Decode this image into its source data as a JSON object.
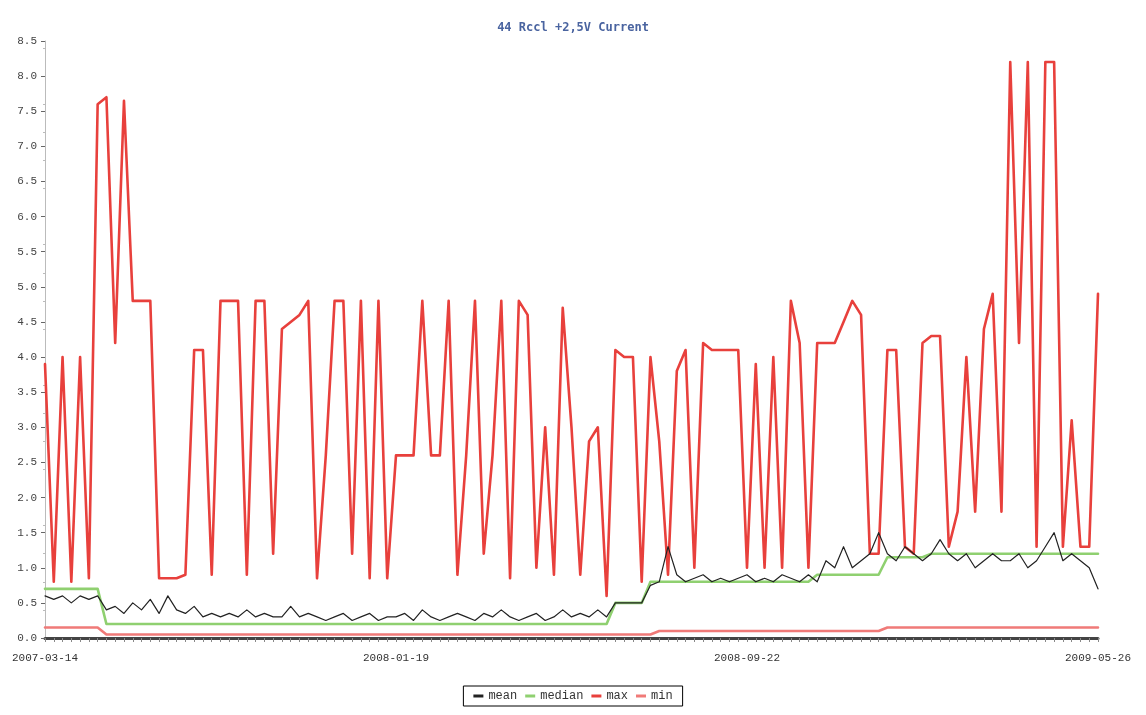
{
  "chart_data": {
    "type": "line",
    "title": "44 Rccl +2,5V Current",
    "categories": [
      "2007-03-14",
      null,
      null,
      null,
      null,
      null,
      null,
      null,
      null,
      null,
      null,
      null,
      null,
      null,
      null,
      null,
      null,
      null,
      null,
      null,
      null,
      null,
      null,
      null,
      null,
      null,
      null,
      null,
      null,
      null,
      null,
      null,
      null,
      null,
      null,
      null,
      null,
      null,
      null,
      null,
      "2008-01-19",
      null,
      null,
      null,
      null,
      null,
      null,
      null,
      null,
      null,
      null,
      null,
      null,
      null,
      null,
      null,
      null,
      null,
      null,
      null,
      null,
      null,
      null,
      null,
      null,
      null,
      null,
      null,
      null,
      null,
      null,
      null,
      null,
      null,
      null,
      null,
      null,
      null,
      null,
      null,
      "2008-09-22",
      null,
      null,
      null,
      null,
      null,
      null,
      null,
      null,
      null,
      null,
      null,
      null,
      null,
      null,
      null,
      null,
      null,
      null,
      null,
      null,
      null,
      null,
      null,
      null,
      null,
      null,
      null,
      null,
      null,
      null,
      null,
      null,
      null,
      null,
      null,
      null,
      null,
      null,
      null,
      "2009-05-26"
    ],
    "series": [
      {
        "name": "mean",
        "color": "#222222",
        "values": [
          0.6,
          0.55,
          0.6,
          0.5,
          0.6,
          0.55,
          0.6,
          0.4,
          0.45,
          0.35,
          0.5,
          0.4,
          0.55,
          0.35,
          0.6,
          0.4,
          0.35,
          0.45,
          0.3,
          0.35,
          0.3,
          0.35,
          0.3,
          0.4,
          0.3,
          0.35,
          0.3,
          0.3,
          0.45,
          0.3,
          0.35,
          0.3,
          0.25,
          0.3,
          0.35,
          0.25,
          0.3,
          0.35,
          0.25,
          0.3,
          0.3,
          0.35,
          0.25,
          0.4,
          0.3,
          0.25,
          0.3,
          0.35,
          0.3,
          0.25,
          0.35,
          0.3,
          0.4,
          0.3,
          0.25,
          0.3,
          0.35,
          0.25,
          0.3,
          0.4,
          0.3,
          0.35,
          0.3,
          0.4,
          0.3,
          0.5,
          0.5,
          0.5,
          0.5,
          0.75,
          0.8,
          1.3,
          0.9,
          0.8,
          0.85,
          0.9,
          0.8,
          0.85,
          0.8,
          0.85,
          0.9,
          0.8,
          0.85,
          0.8,
          0.9,
          0.85,
          0.8,
          0.9,
          0.8,
          1.1,
          1.0,
          1.3,
          1.0,
          1.1,
          1.2,
          1.5,
          1.2,
          1.1,
          1.3,
          1.2,
          1.1,
          1.2,
          1.4,
          1.2,
          1.1,
          1.2,
          1.0,
          1.1,
          1.2,
          1.1,
          1.1,
          1.2,
          1.0,
          1.1,
          1.3,
          1.5,
          1.1,
          1.2,
          1.1,
          1.0,
          0.7
        ]
      },
      {
        "name": "median",
        "color": "#8fd070",
        "values": [
          0.7,
          0.7,
          0.7,
          0.7,
          0.7,
          0.7,
          0.7,
          0.2,
          0.2,
          0.2,
          0.2,
          0.2,
          0.2,
          0.2,
          0.2,
          0.2,
          0.2,
          0.2,
          0.2,
          0.2,
          0.2,
          0.2,
          0.2,
          0.2,
          0.2,
          0.2,
          0.2,
          0.2,
          0.2,
          0.2,
          0.2,
          0.2,
          0.2,
          0.2,
          0.2,
          0.2,
          0.2,
          0.2,
          0.2,
          0.2,
          0.2,
          0.2,
          0.2,
          0.2,
          0.2,
          0.2,
          0.2,
          0.2,
          0.2,
          0.2,
          0.2,
          0.2,
          0.2,
          0.2,
          0.2,
          0.2,
          0.2,
          0.2,
          0.2,
          0.2,
          0.2,
          0.2,
          0.2,
          0.2,
          0.2,
          0.5,
          0.5,
          0.5,
          0.5,
          0.8,
          0.8,
          0.8,
          0.8,
          0.8,
          0.8,
          0.8,
          0.8,
          0.8,
          0.8,
          0.8,
          0.8,
          0.8,
          0.8,
          0.8,
          0.8,
          0.8,
          0.8,
          0.8,
          0.9,
          0.9,
          0.9,
          0.9,
          0.9,
          0.9,
          0.9,
          0.9,
          1.15,
          1.15,
          1.15,
          1.15,
          1.15,
          1.2,
          1.2,
          1.2,
          1.2,
          1.2,
          1.2,
          1.2,
          1.2,
          1.2,
          1.2,
          1.2,
          1.2,
          1.2,
          1.2,
          1.2,
          1.2,
          1.2,
          1.2,
          1.2,
          1.2
        ]
      },
      {
        "name": "max",
        "color": "#e8403c",
        "values": [
          3.9,
          0.8,
          4.0,
          0.8,
          4.0,
          0.85,
          7.6,
          7.7,
          4.2,
          7.65,
          4.8,
          4.8,
          4.8,
          0.85,
          0.85,
          0.85,
          0.9,
          4.1,
          4.1,
          0.9,
          4.8,
          4.8,
          4.8,
          0.9,
          4.8,
          4.8,
          1.2,
          4.4,
          4.5,
          4.6,
          4.8,
          0.85,
          2.6,
          4.8,
          4.8,
          1.2,
          4.8,
          0.85,
          4.8,
          0.85,
          2.6,
          2.6,
          2.6,
          4.8,
          2.6,
          2.6,
          4.8,
          0.9,
          2.6,
          4.8,
          1.2,
          2.6,
          4.8,
          0.85,
          4.8,
          4.6,
          1.0,
          3.0,
          0.9,
          4.7,
          3.0,
          0.9,
          2.8,
          3.0,
          0.6,
          4.1,
          4.0,
          4.0,
          0.8,
          4.0,
          2.8,
          0.9,
          3.8,
          4.1,
          1.0,
          4.2,
          4.1,
          4.1,
          4.1,
          4.1,
          1.0,
          3.9,
          1.0,
          4.0,
          1.0,
          4.8,
          4.2,
          1.0,
          4.2,
          4.2,
          4.2,
          4.5,
          4.8,
          4.6,
          1.2,
          1.2,
          4.1,
          4.1,
          1.3,
          1.2,
          4.2,
          4.3,
          4.3,
          1.3,
          1.8,
          4.0,
          1.8,
          4.4,
          4.9,
          1.8,
          8.2,
          4.2,
          8.2,
          1.3,
          8.2,
          8.2,
          1.3,
          3.1,
          1.3,
          1.3,
          4.9
        ]
      },
      {
        "name": "min",
        "color": "#f07a78",
        "values": [
          0.15,
          0.15,
          0.15,
          0.15,
          0.15,
          0.15,
          0.15,
          0.05,
          0.05,
          0.05,
          0.05,
          0.05,
          0.05,
          0.05,
          0.05,
          0.05,
          0.05,
          0.05,
          0.05,
          0.05,
          0.05,
          0.05,
          0.05,
          0.05,
          0.05,
          0.05,
          0.05,
          0.05,
          0.05,
          0.05,
          0.05,
          0.05,
          0.05,
          0.05,
          0.05,
          0.05,
          0.05,
          0.05,
          0.05,
          0.05,
          0.05,
          0.05,
          0.05,
          0.05,
          0.05,
          0.05,
          0.05,
          0.05,
          0.05,
          0.05,
          0.05,
          0.05,
          0.05,
          0.05,
          0.05,
          0.05,
          0.05,
          0.05,
          0.05,
          0.05,
          0.05,
          0.05,
          0.05,
          0.05,
          0.05,
          0.05,
          0.05,
          0.05,
          0.05,
          0.05,
          0.1,
          0.1,
          0.1,
          0.1,
          0.1,
          0.1,
          0.1,
          0.1,
          0.1,
          0.1,
          0.1,
          0.1,
          0.1,
          0.1,
          0.1,
          0.1,
          0.1,
          0.1,
          0.1,
          0.1,
          0.1,
          0.1,
          0.1,
          0.1,
          0.1,
          0.1,
          0.15,
          0.15,
          0.15,
          0.15,
          0.15,
          0.15,
          0.15,
          0.15,
          0.15,
          0.15,
          0.15,
          0.15,
          0.15,
          0.15,
          0.15,
          0.15,
          0.15,
          0.15,
          0.15,
          0.15,
          0.15,
          0.15,
          0.15,
          0.15,
          0.15
        ]
      }
    ],
    "ylim": [
      0,
      8.5
    ],
    "yticks": [
      {
        "value": 0,
        "label": "0.0"
      },
      {
        "value": 0.5,
        "label": "0.5"
      },
      {
        "value": 1,
        "label": "1.0"
      },
      {
        "value": 1.5,
        "label": "1.5"
      },
      {
        "value": 2,
        "label": "2.0"
      },
      {
        "value": 2.5,
        "label": "2.5"
      },
      {
        "value": 3,
        "label": "3.0"
      },
      {
        "value": 3.5,
        "label": "3.5"
      },
      {
        "value": 4,
        "label": "4.0"
      },
      {
        "value": 4.5,
        "label": "4.5"
      },
      {
        "value": 5,
        "label": "5.0"
      },
      {
        "value": 5.5,
        "label": "5.5"
      },
      {
        "value": 6,
        "label": "6.0"
      },
      {
        "value": 6.5,
        "label": "6.5"
      },
      {
        "value": 7,
        "label": "7.0"
      },
      {
        "value": 7.5,
        "label": "7.5"
      },
      {
        "value": 8,
        "label": "8.0"
      },
      {
        "value": 8.5,
        "label": "8.5"
      }
    ],
    "grid": false,
    "legend": "bottom",
    "marker": "none",
    "line_style": "solid"
  }
}
